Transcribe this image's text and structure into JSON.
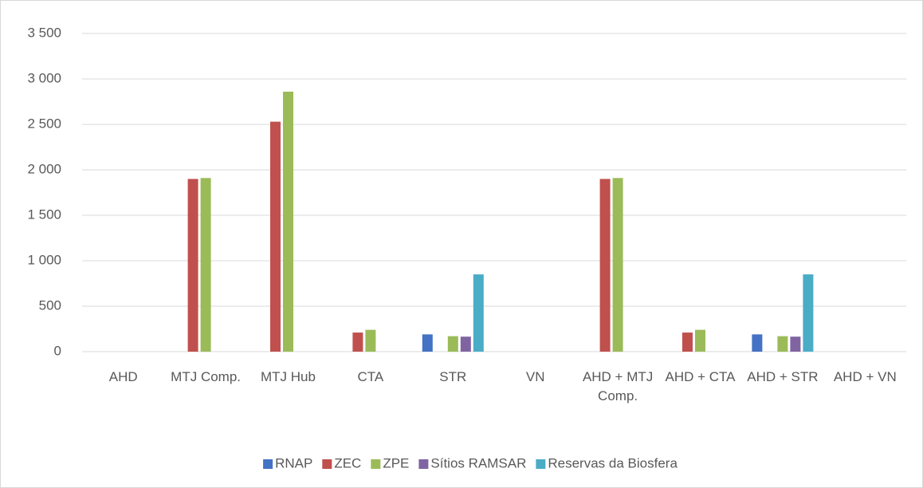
{
  "chart_data": {
    "type": "bar",
    "categories": [
      "AHD",
      "MTJ Comp.",
      "MTJ Hub",
      "CTA",
      "STR",
      "VN",
      "AHD + MTJ Comp.",
      "AHD + CTA",
      "AHD + STR",
      "AHD + VN"
    ],
    "series": [
      {
        "name": "RNAP",
        "color": "#4472c4",
        "values": [
          0,
          0,
          0,
          0,
          190,
          0,
          0,
          0,
          190,
          0
        ]
      },
      {
        "name": "ZEC",
        "color": "#c0504d",
        "values": [
          0,
          1900,
          2530,
          210,
          0,
          0,
          1900,
          210,
          0,
          0
        ]
      },
      {
        "name": "ZPE",
        "color": "#9bbb59",
        "values": [
          0,
          1910,
          2860,
          240,
          170,
          0,
          1910,
          240,
          170,
          0
        ]
      },
      {
        "name": "Sítios RAMSAR",
        "color": "#8064a2",
        "values": [
          0,
          0,
          0,
          0,
          165,
          0,
          0,
          0,
          165,
          0
        ]
      },
      {
        "name": "Reservas da Biosfera",
        "color": "#4bacc6",
        "values": [
          0,
          0,
          0,
          0,
          850,
          0,
          0,
          0,
          850,
          0
        ]
      }
    ],
    "ylim": [
      0,
      3500
    ],
    "yticks": [
      0,
      500,
      {
        "value": 1000,
        "label": "1 000"
      },
      {
        "value": 1500,
        "label": "1 500"
      },
      {
        "value": 2000,
        "label": "2 000"
      },
      {
        "value": 2500,
        "label": "2 500"
      },
      {
        "value": 3000,
        "label": "3 000"
      },
      {
        "value": 3500,
        "label": "3 500"
      }
    ],
    "grid": true,
    "legend": "bottom"
  }
}
